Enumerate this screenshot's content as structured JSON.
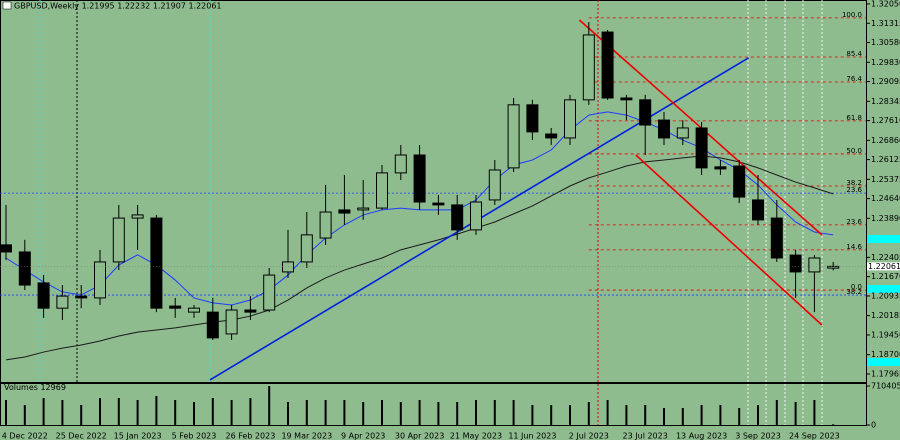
{
  "chart_data": [
    {
      "type": "candlestick",
      "title": "GBPUSD,Weekly  1.21995 1.22232 1.21907 1.22061",
      "categories": [
        null,
        "4 Dec 2022",
        null,
        null,
        "25 Dec 2022",
        null,
        null,
        "15 Jan 2023",
        null,
        null,
        "5 Feb 2023",
        null,
        null,
        "26 Feb 2023",
        null,
        null,
        "19 Mar 2023",
        null,
        null,
        "9 Apr 2023",
        null,
        null,
        "30 Apr 2023",
        null,
        null,
        "21 May 2023",
        null,
        null,
        "11 Jun 2023",
        null,
        null,
        "2 Jul 2023",
        null,
        null,
        "23 Jul 2023",
        null,
        null,
        "13 Aug 2023",
        null,
        null,
        "3 Sep 2023",
        null,
        null,
        "24 Sep 2023",
        null
      ],
      "open": [
        1.2288,
        1.2261,
        1.2143,
        1.2047,
        1.2093,
        1.2086,
        1.2223,
        1.239,
        1.239,
        1.2055,
        1.2032,
        1.2032,
        1.1949,
        1.204,
        1.204,
        1.2185,
        1.2223,
        1.2314,
        1.2421,
        1.2421,
        1.2428,
        1.2562,
        1.263,
        1.2447,
        1.244,
        1.2345,
        1.2459,
        1.2581,
        1.2821,
        1.271,
        1.2695,
        1.284,
        1.3098,
        1.2847,
        1.284,
        1.2763,
        1.2695,
        1.2733,
        1.2585,
        1.2588,
        1.2459,
        1.239,
        1.2249,
        1.2185,
        1.21995
      ],
      "high": [
        1.244,
        1.2307,
        1.2173,
        1.2135,
        1.2135,
        1.2269,
        1.244,
        1.244,
        1.2402,
        1.2086,
        1.2059,
        1.2086,
        1.2059,
        1.2093,
        1.22,
        1.2345,
        1.2413,
        1.2516,
        1.2554,
        1.2535,
        1.2592,
        1.2668,
        1.2668,
        1.2478,
        1.2478,
        1.2478,
        1.2611,
        1.2847,
        1.284,
        1.2733,
        1.2859,
        1.3136,
        1.3106,
        1.2859,
        1.2859,
        1.2794,
        1.2763,
        1.2756,
        1.2611,
        1.2611,
        1.2554,
        1.2459,
        1.2269,
        1.2249,
        1.22232
      ],
      "low": [
        1.223,
        1.2116,
        1.201,
        1.2002,
        1.2047,
        1.2059,
        1.2192,
        1.2269,
        1.2032,
        1.201,
        1.201,
        1.1926,
        1.1926,
        1.2002,
        1.2032,
        1.2162,
        1.22,
        1.2288,
        1.2364,
        1.2383,
        1.2421,
        1.2535,
        1.2421,
        1.2402,
        1.2307,
        1.2326,
        1.244,
        1.2565,
        1.2687,
        1.2668,
        1.2668,
        1.2821,
        1.284,
        1.2763,
        1.263,
        1.2668,
        1.2668,
        1.2554,
        1.2554,
        1.2447,
        1.2364,
        1.2223,
        1.2086,
        1.2032,
        1.21907
      ],
      "close": [
        1.2261,
        1.2135,
        1.2047,
        1.2093,
        1.2086,
        1.2223,
        1.239,
        1.2402,
        1.2047,
        1.2047,
        1.2047,
        1.1934,
        1.204,
        1.2032,
        1.2173,
        1.2223,
        1.2326,
        1.2413,
        1.2409,
        1.2428,
        1.2562,
        1.263,
        1.2451,
        1.244,
        1.2345,
        1.2451,
        1.2573,
        1.2821,
        1.2718,
        1.2695,
        1.284,
        1.3087,
        1.2847,
        1.284,
        1.2744,
        1.2695,
        1.2733,
        1.2581,
        1.2577,
        1.247,
        1.2383,
        1.2238,
        1.2185,
        1.2238,
        1.22061
      ],
      "up_color": "#8fbc8f",
      "down_color": "#000000",
      "overlays": [
        {
          "color": "#1e3cff",
          "values": [
            1.2238,
            1.2192,
            1.2147,
            1.2109,
            1.2097,
            1.2135,
            1.2211,
            1.225,
            1.2211,
            1.2154,
            1.2086,
            1.2067,
            1.2059,
            1.2078,
            1.2116,
            1.2173,
            1.225,
            1.2314,
            1.2364,
            1.2402,
            1.2421,
            1.2428,
            1.2421,
            1.2421,
            1.2421,
            1.2459,
            1.2535,
            1.2592,
            1.2611,
            1.2649,
            1.2725,
            1.2782,
            1.2794,
            1.2782,
            1.2756,
            1.2725,
            1.2687,
            1.2657,
            1.2611,
            1.2573,
            1.2516,
            1.244,
            1.2375,
            1.2337,
            1.2326
          ]
        },
        {
          "color": "#1a1a1a",
          "values": [
            1.185,
            1.1861,
            1.188,
            1.1895,
            1.1907,
            1.1922,
            1.1941,
            1.1956,
            1.1964,
            1.1972,
            1.1983,
            1.1994,
            1.2002,
            1.2017,
            1.204,
            1.2078,
            1.2124,
            1.2162,
            1.2192,
            1.2215,
            1.2238,
            1.2269,
            1.2288,
            1.2307,
            1.2329,
            1.2352,
            1.2375,
            1.2406,
            1.2436,
            1.2474,
            1.2512,
            1.2543,
            1.2565,
            1.2588,
            1.2604,
            1.2611,
            1.2619,
            1.2626,
            1.2619,
            1.2604,
            1.2581,
            1.2554,
            1.2527,
            1.2505,
            1.2482
          ]
        }
      ],
      "trendlines": [
        {
          "color": "#0022dd",
          "x": [
            10.85,
            39.5
          ],
          "y": [
            1.1774,
            1.3
          ]
        },
        {
          "color": "#ee0000",
          "x": [
            30.5,
            43.4
          ],
          "y": [
            1.3144,
            1.2326
          ]
        },
        {
          "color": "#ee0000",
          "x": [
            33.5,
            43.4
          ],
          "y": [
            1.263,
            1.1983
          ]
        }
      ],
      "fib_levels": [
        {
          "label": "100.0",
          "value": 1.3152,
          "color": "#e00000"
        },
        {
          "label": "85.4",
          "value": 1.3003,
          "color": "#e00000"
        },
        {
          "label": "76.4",
          "value": 1.2908,
          "color": "#e00000"
        },
        {
          "label": "61.8",
          "value": 1.276,
          "color": "#e00000"
        },
        {
          "label": "50.0",
          "value": 1.2634,
          "color": "#e00000"
        },
        {
          "label": "38.2",
          "value": 1.2512,
          "color": "#e00000"
        },
        {
          "label": "23.6",
          "value": 1.2364,
          "color": "#e00000"
        },
        {
          "label": "14.6",
          "value": 1.2269,
          "color": "#e00000"
        },
        {
          "label": "0.0",
          "value": 1.2116,
          "color": "#e00000"
        },
        {
          "label": "23.6",
          "value": 1.2485,
          "color": "#1e3cff"
        },
        {
          "label": "38.2",
          "value": 1.2097,
          "color": "#1e3cff"
        }
      ],
      "last_price": {
        "value": 1.22061,
        "label": "1.22061"
      },
      "ylim": [
        1.1766,
        1.322
      ],
      "yticks": [
        {
          "value": 1.3205,
          "label": "1.32050"
        },
        {
          "value": 1.31315,
          "label": "1.31315"
        },
        {
          "value": 1.3058,
          "label": "1.30580"
        },
        {
          "value": 1.2983,
          "label": "1.29830"
        },
        {
          "value": 1.29095,
          "label": "1.29095"
        },
        {
          "value": 1.28345,
          "label": "1.28345"
        },
        {
          "value": 1.2761,
          "label": "1.27610"
        },
        {
          "value": 1.2686,
          "label": "1.26860"
        },
        {
          "value": 1.26125,
          "label": "1.26125"
        },
        {
          "value": 1.25375,
          "label": "1.25375"
        },
        {
          "value": 1.2464,
          "label": "1.24640"
        },
        {
          "value": 1.2389,
          "label": "1.23890"
        },
        {
          "value": 1.22405,
          "label": "1.22405"
        },
        {
          "value": 1.2167,
          "label": "1.21670"
        },
        {
          "value": 1.20935,
          "label": "1.20935"
        },
        {
          "value": 1.20185,
          "label": "1.20185"
        },
        {
          "value": 1.1945,
          "label": "1.19450"
        },
        {
          "value": 1.187,
          "label": "1.18700"
        },
        {
          "value": 1.17965,
          "label": "1.17965"
        }
      ]
    },
    {
      "type": "bar",
      "title": "Volumes",
      "color": "#000000",
      "values": [
        455000,
        364000,
        492000,
        455000,
        364000,
        492000,
        492000,
        455000,
        528000,
        455000,
        419000,
        492000,
        455000,
        492000,
        710000,
        419000,
        455000,
        455000,
        455000,
        419000,
        455000,
        419000,
        455000,
        419000,
        419000,
        455000,
        455000,
        455000,
        364000,
        364000,
        364000,
        419000,
        455000,
        364000,
        364000,
        310000,
        310000,
        364000,
        364000,
        310000,
        364000,
        455000,
        419000,
        455000,
        12969
      ],
      "ylim": [
        0,
        710405
      ],
      "yticks": [
        0,
        710405
      ]
    }
  ]
}
